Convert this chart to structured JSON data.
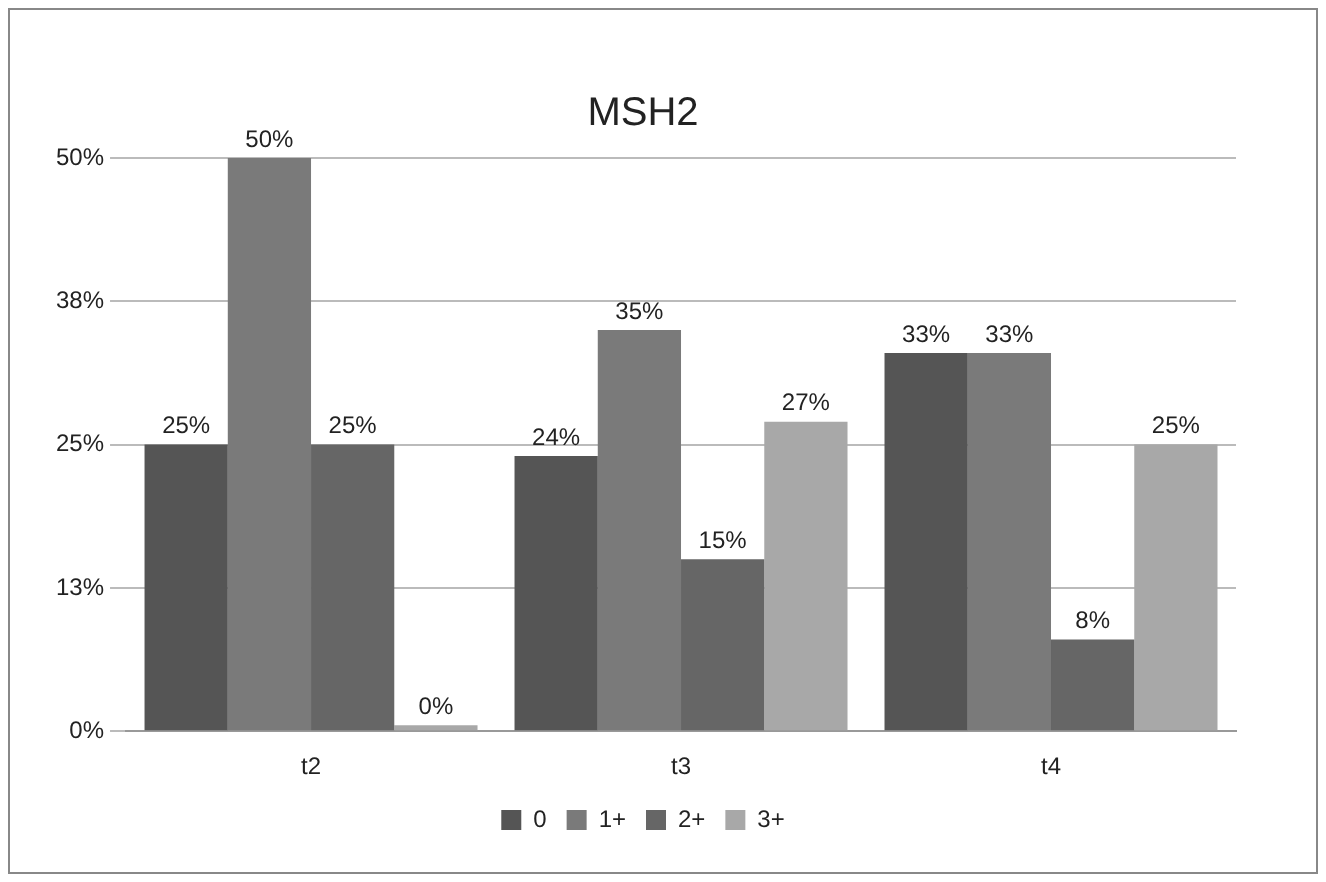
{
  "chart_data": {
    "type": "bar",
    "title": "MSH2",
    "categories": [
      "t2",
      "t3",
      "t4"
    ],
    "series": [
      {
        "name": "0",
        "color": "#555555",
        "values": [
          25,
          24,
          33
        ],
        "value_labels": [
          "25%",
          "24%",
          "33%"
        ]
      },
      {
        "name": "1+",
        "color": "#7a7a7a",
        "values": [
          50,
          35,
          33
        ],
        "value_labels": [
          "50%",
          "35%",
          "33%"
        ]
      },
      {
        "name": "2+",
        "color": "#666666",
        "values": [
          25,
          15,
          8
        ],
        "value_labels": [
          "25%",
          "15%",
          "8%"
        ]
      },
      {
        "name": "3+",
        "color": "#a8a8a8",
        "values": [
          0,
          27,
          25
        ],
        "value_labels": [
          "0%",
          "27%",
          "25%"
        ]
      }
    ],
    "ylim": [
      0,
      50
    ],
    "yticks": [
      {
        "value": 0,
        "label": "0%"
      },
      {
        "value": 12.5,
        "label": "13%"
      },
      {
        "value": 25,
        "label": "25%"
      },
      {
        "value": 37.5,
        "label": "38%"
      },
      {
        "value": 50,
        "label": "50%"
      }
    ],
    "grid": "y",
    "legend": "bottom"
  }
}
